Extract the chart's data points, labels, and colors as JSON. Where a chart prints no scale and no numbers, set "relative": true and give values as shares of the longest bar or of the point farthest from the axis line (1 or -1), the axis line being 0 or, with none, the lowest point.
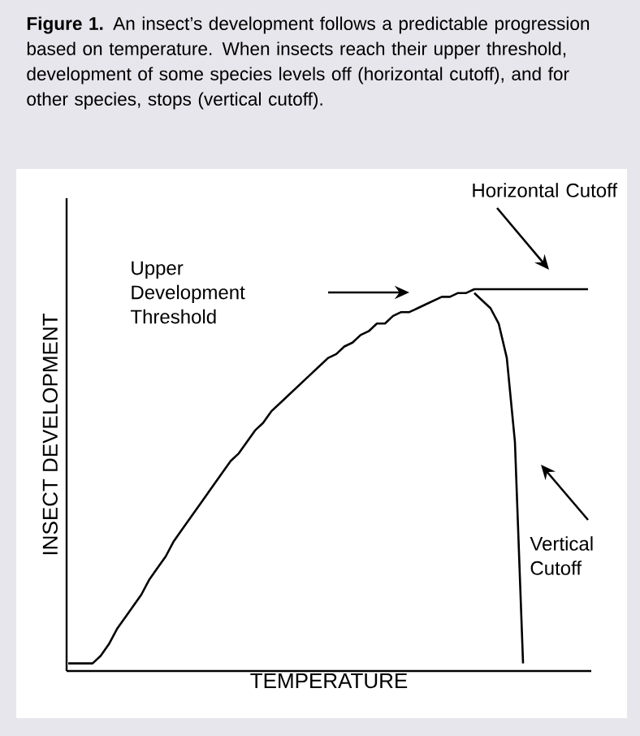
{
  "chart_data": {
    "type": "line",
    "relative": true,
    "title": "**Figure 1.**  An insect’s development follows a predictable progression based on temperature.  When insects reach their upper threshold, development of some species levels off (horizontal cutoff), and for other species, stops (vertical cutoff).",
    "xlabel": "TEMPERATURE",
    "ylabel": "INSECT DEVELOPMENT",
    "categories": [
      null,
      null,
      null,
      null,
      null,
      null,
      null,
      null,
      null,
      null,
      null,
      null,
      null,
      null,
      null,
      null,
      null,
      null,
      null,
      null,
      null,
      null,
      null,
      null,
      null,
      null,
      null,
      null,
      null,
      null,
      null,
      null,
      null,
      null,
      null,
      null,
      null,
      null,
      null,
      null,
      null,
      null,
      null,
      null,
      null,
      null,
      null,
      null,
      null,
      null,
      null,
      null,
      null,
      null,
      null,
      null,
      null,
      null,
      null,
      null,
      null,
      null,
      null,
      null,
      null
    ],
    "series": [
      {
        "color": "#000000",
        "values": [
          0.02,
          0.02,
          0.02,
          0.02,
          0.04,
          0.07,
          0.11,
          0.14,
          0.17,
          0.2,
          0.24,
          0.27,
          0.3,
          0.34,
          0.37,
          0.4,
          0.43,
          0.46,
          0.49,
          0.52,
          0.55,
          0.57,
          0.6,
          0.63,
          0.65,
          0.68,
          0.7,
          0.72,
          0.74,
          0.76,
          0.78,
          0.8,
          0.82,
          0.83,
          0.85,
          0.86,
          0.88,
          0.89,
          0.91,
          0.91,
          0.93,
          0.94,
          0.94,
          0.95,
          0.96,
          0.97,
          0.98,
          0.98,
          0.99,
          0.99,
          1,
          1,
          1,
          1,
          1,
          1,
          1,
          1,
          1,
          1,
          1,
          1,
          1,
          1,
          1
        ]
      },
      {
        "color": "#000000",
        "values": [
          null,
          null,
          null,
          null,
          null,
          null,
          null,
          null,
          null,
          null,
          null,
          null,
          null,
          null,
          null,
          null,
          null,
          null,
          null,
          null,
          null,
          null,
          null,
          null,
          null,
          null,
          null,
          null,
          null,
          null,
          null,
          null,
          null,
          null,
          null,
          null,
          null,
          null,
          null,
          null,
          null,
          null,
          null,
          null,
          null,
          null,
          null,
          null,
          null,
          null,
          0.99,
          0.97,
          0.95,
          0.91,
          0.82,
          0.6,
          0.02,
          null,
          null,
          null,
          null,
          null,
          null,
          null,
          null
        ]
      }
    ],
    "annotations": [
      "Horizontal Cutoff",
      "Upper Development Threshold",
      "Vertical Cutoff"
    ],
    "marker": "none",
    "line_style": "solid"
  }
}
